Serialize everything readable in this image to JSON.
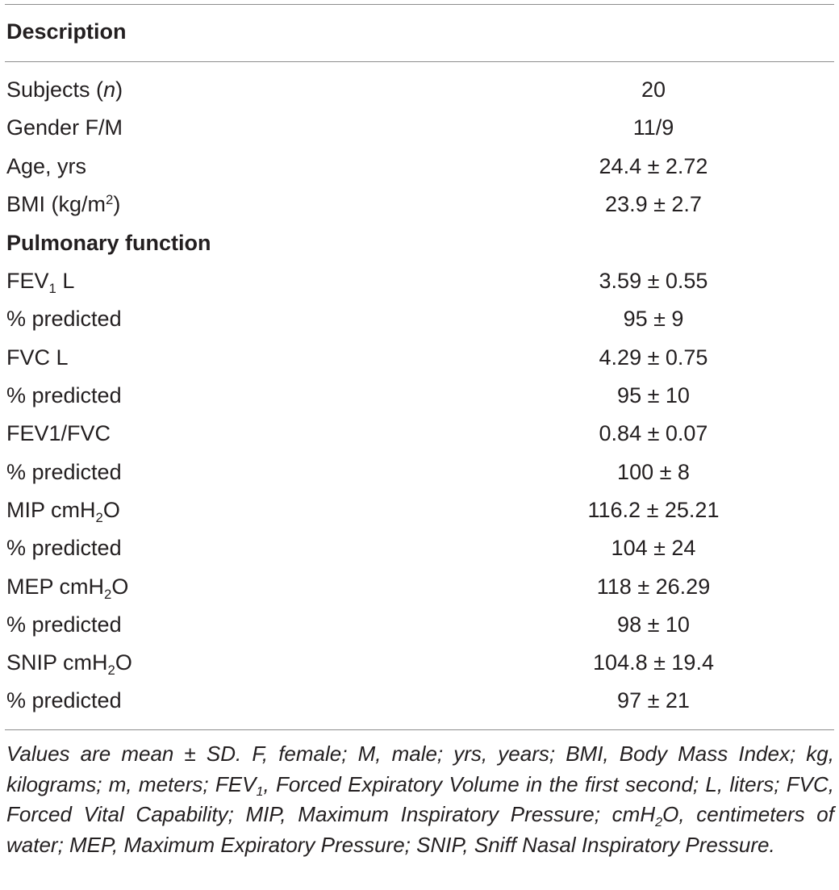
{
  "header": {
    "title": "Description"
  },
  "rows": [
    {
      "label_parts": [
        "Subjects (",
        "n",
        ")"
      ],
      "value": "20"
    },
    {
      "label": "Gender F/M",
      "value": "11/9"
    },
    {
      "label": "Age, yrs",
      "value": "24.4 ± 2.72"
    },
    {
      "label_parts": [
        "BMI (kg/m",
        "2",
        ")"
      ],
      "value": "23.9 ± 2.7"
    },
    {
      "label": "Pulmonary function",
      "section": true
    },
    {
      "label_parts": [
        "FEV",
        "1",
        " L"
      ],
      "value": "3.59 ± 0.55"
    },
    {
      "label": "% predicted",
      "value": "95 ± 9"
    },
    {
      "label": "FVC L",
      "value": "4.29 ± 0.75"
    },
    {
      "label": "% predicted",
      "value": "95 ± 10"
    },
    {
      "label": "FEV1/FVC",
      "value": "0.84 ± 0.07"
    },
    {
      "label": "% predicted",
      "value": "100 ± 8"
    },
    {
      "label_parts": [
        "MIP cmH",
        "2",
        "O"
      ],
      "value": "116.2 ± 25.21"
    },
    {
      "label": "% predicted",
      "value": "104 ± 24"
    },
    {
      "label_parts": [
        "MEP cmH",
        "2",
        "O"
      ],
      "value": "118 ± 26.29"
    },
    {
      "label": "% predicted",
      "value": "98 ± 10"
    },
    {
      "label_parts": [
        "SNIP cmH",
        "2",
        "O"
      ],
      "value": "104.8 ± 19.4"
    },
    {
      "label": "% predicted",
      "value": "97 ± 21"
    }
  ],
  "footnote": {
    "part1": "Values are mean ± SD. F, female; M, male; yrs, years; BMI, Body Mass Index; kg, kilograms; m, meters; FEV",
    "sub1": "1",
    "part2": ", Forced Expiratory Volume in the first second; L, liters; FVC, Forced Vital Capability; MIP, Maximum Inspiratory Pressure; cmH",
    "sub2": "2",
    "part3": "O, centimeters of water; MEP, Maximum Expiratory Pressure; SNIP, Sniff Nasal Inspiratory Pressure."
  }
}
